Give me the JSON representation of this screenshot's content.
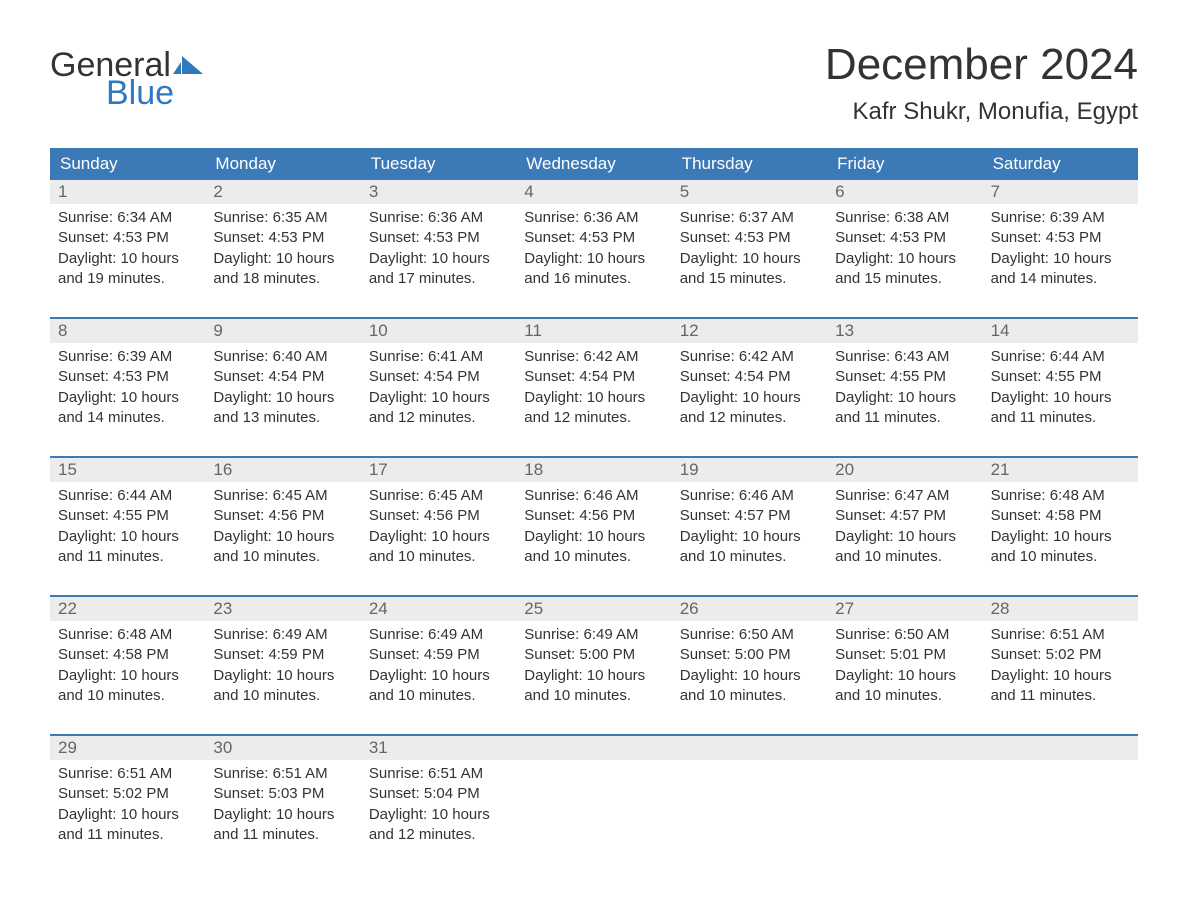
{
  "brand": {
    "word1": "General",
    "word2": "Blue",
    "accent_color": "#2f79bd"
  },
  "title": "December 2024",
  "location": "Kafr Shukr, Monufia, Egypt",
  "header_bg": "#3b79b7",
  "daynum_bg": "#ececec",
  "text_color": "#333333",
  "weekdays": [
    "Sunday",
    "Monday",
    "Tuesday",
    "Wednesday",
    "Thursday",
    "Friday",
    "Saturday"
  ],
  "labels": {
    "sunrise": "Sunrise:",
    "sunset": "Sunset:",
    "daylight": "Daylight:"
  },
  "days": [
    {
      "n": 1,
      "sunrise": "6:34 AM",
      "sunset": "4:53 PM",
      "daylight": "10 hours and 19 minutes."
    },
    {
      "n": 2,
      "sunrise": "6:35 AM",
      "sunset": "4:53 PM",
      "daylight": "10 hours and 18 minutes."
    },
    {
      "n": 3,
      "sunrise": "6:36 AM",
      "sunset": "4:53 PM",
      "daylight": "10 hours and 17 minutes."
    },
    {
      "n": 4,
      "sunrise": "6:36 AM",
      "sunset": "4:53 PM",
      "daylight": "10 hours and 16 minutes."
    },
    {
      "n": 5,
      "sunrise": "6:37 AM",
      "sunset": "4:53 PM",
      "daylight": "10 hours and 15 minutes."
    },
    {
      "n": 6,
      "sunrise": "6:38 AM",
      "sunset": "4:53 PM",
      "daylight": "10 hours and 15 minutes."
    },
    {
      "n": 7,
      "sunrise": "6:39 AM",
      "sunset": "4:53 PM",
      "daylight": "10 hours and 14 minutes."
    },
    {
      "n": 8,
      "sunrise": "6:39 AM",
      "sunset": "4:53 PM",
      "daylight": "10 hours and 14 minutes."
    },
    {
      "n": 9,
      "sunrise": "6:40 AM",
      "sunset": "4:54 PM",
      "daylight": "10 hours and 13 minutes."
    },
    {
      "n": 10,
      "sunrise": "6:41 AM",
      "sunset": "4:54 PM",
      "daylight": "10 hours and 12 minutes."
    },
    {
      "n": 11,
      "sunrise": "6:42 AM",
      "sunset": "4:54 PM",
      "daylight": "10 hours and 12 minutes."
    },
    {
      "n": 12,
      "sunrise": "6:42 AM",
      "sunset": "4:54 PM",
      "daylight": "10 hours and 12 minutes."
    },
    {
      "n": 13,
      "sunrise": "6:43 AM",
      "sunset": "4:55 PM",
      "daylight": "10 hours and 11 minutes."
    },
    {
      "n": 14,
      "sunrise": "6:44 AM",
      "sunset": "4:55 PM",
      "daylight": "10 hours and 11 minutes."
    },
    {
      "n": 15,
      "sunrise": "6:44 AM",
      "sunset": "4:55 PM",
      "daylight": "10 hours and 11 minutes."
    },
    {
      "n": 16,
      "sunrise": "6:45 AM",
      "sunset": "4:56 PM",
      "daylight": "10 hours and 10 minutes."
    },
    {
      "n": 17,
      "sunrise": "6:45 AM",
      "sunset": "4:56 PM",
      "daylight": "10 hours and 10 minutes."
    },
    {
      "n": 18,
      "sunrise": "6:46 AM",
      "sunset": "4:56 PM",
      "daylight": "10 hours and 10 minutes."
    },
    {
      "n": 19,
      "sunrise": "6:46 AM",
      "sunset": "4:57 PM",
      "daylight": "10 hours and 10 minutes."
    },
    {
      "n": 20,
      "sunrise": "6:47 AM",
      "sunset": "4:57 PM",
      "daylight": "10 hours and 10 minutes."
    },
    {
      "n": 21,
      "sunrise": "6:48 AM",
      "sunset": "4:58 PM",
      "daylight": "10 hours and 10 minutes."
    },
    {
      "n": 22,
      "sunrise": "6:48 AM",
      "sunset": "4:58 PM",
      "daylight": "10 hours and 10 minutes."
    },
    {
      "n": 23,
      "sunrise": "6:49 AM",
      "sunset": "4:59 PM",
      "daylight": "10 hours and 10 minutes."
    },
    {
      "n": 24,
      "sunrise": "6:49 AM",
      "sunset": "4:59 PM",
      "daylight": "10 hours and 10 minutes."
    },
    {
      "n": 25,
      "sunrise": "6:49 AM",
      "sunset": "5:00 PM",
      "daylight": "10 hours and 10 minutes."
    },
    {
      "n": 26,
      "sunrise": "6:50 AM",
      "sunset": "5:00 PM",
      "daylight": "10 hours and 10 minutes."
    },
    {
      "n": 27,
      "sunrise": "6:50 AM",
      "sunset": "5:01 PM",
      "daylight": "10 hours and 10 minutes."
    },
    {
      "n": 28,
      "sunrise": "6:51 AM",
      "sunset": "5:02 PM",
      "daylight": "10 hours and 11 minutes."
    },
    {
      "n": 29,
      "sunrise": "6:51 AM",
      "sunset": "5:02 PM",
      "daylight": "10 hours and 11 minutes."
    },
    {
      "n": 30,
      "sunrise": "6:51 AM",
      "sunset": "5:03 PM",
      "daylight": "10 hours and 11 minutes."
    },
    {
      "n": 31,
      "sunrise": "6:51 AM",
      "sunset": "5:04 PM",
      "daylight": "10 hours and 12 minutes."
    }
  ],
  "first_weekday_index": 0,
  "total_cells": 35
}
